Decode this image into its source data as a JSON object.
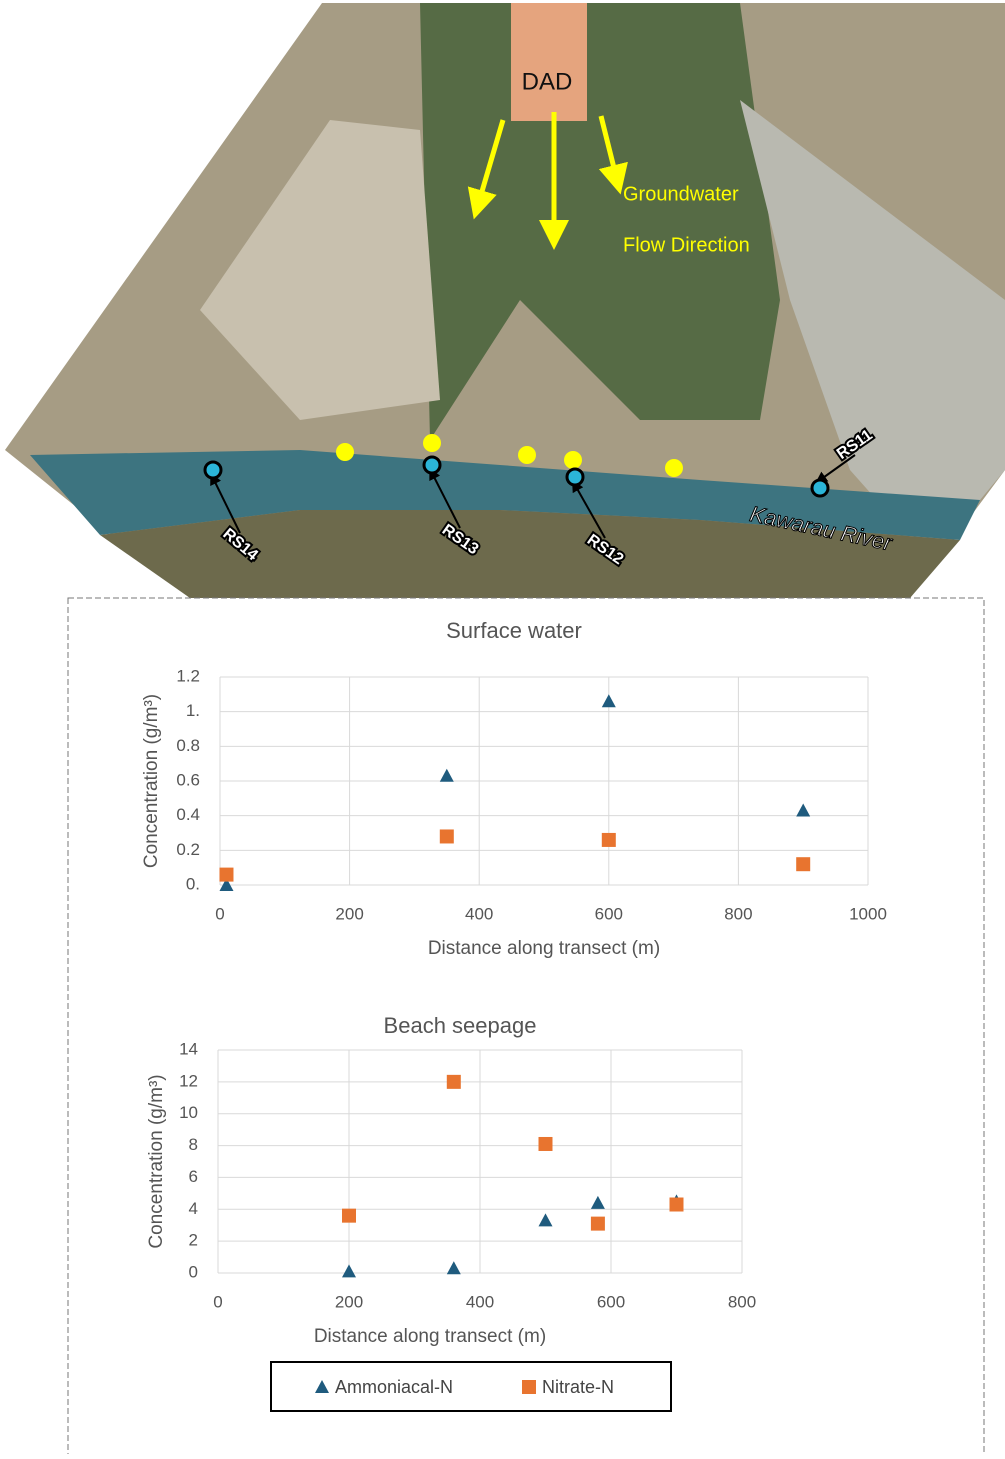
{
  "map": {
    "site": "DAD",
    "flow_label": [
      "Groundwater",
      "Flow Direction"
    ],
    "river": "Kawarau River",
    "sites": [
      "RS14",
      "RS13",
      "RS12",
      "RS11"
    ]
  },
  "chart_data": [
    {
      "type": "scatter",
      "title": "Surface water",
      "x_label": "Distance along transect (m)",
      "y_label": "Concentration (g/m³)",
      "xlim": [
        0,
        1000
      ],
      "xticks": [
        0,
        200,
        400,
        600,
        800,
        1000
      ],
      "ylim": [
        0,
        1.2
      ],
      "yticks": [
        {
          "value": 0,
          "label": "0."
        },
        0.2,
        0.4,
        0.6,
        0.8,
        {
          "value": 1,
          "label": "1."
        },
        1.2
      ],
      "grid": true,
      "series": [
        {
          "color": "#1f5b7e",
          "marker": "triangle",
          "x": [
            10,
            350,
            600,
            900
          ],
          "values": [
            0.0,
            0.63,
            1.06,
            0.43
          ]
        },
        {
          "color": "#e8742f",
          "marker": "square",
          "x": [
            10,
            350,
            600,
            900
          ],
          "values": [
            0.06,
            0.28,
            0.26,
            0.12
          ]
        }
      ]
    },
    {
      "type": "scatter",
      "title": "Beach seepage",
      "x_label": "Distance along transect (m)",
      "y_label": "Concentration (g/m³)",
      "xlim": [
        0,
        800
      ],
      "xticks": [
        0,
        200,
        400,
        600,
        800
      ],
      "ylim": [
        0,
        14
      ],
      "yticks": [
        0,
        2,
        4,
        6,
        8,
        10,
        12,
        14
      ],
      "grid": true,
      "legend": "bottom",
      "series": [
        {
          "name": "Ammoniacal-N",
          "color": "#1f5b7e",
          "marker": "triangle",
          "x": [
            200,
            360,
            500,
            580,
            700
          ],
          "values": [
            0.1,
            0.3,
            3.3,
            4.4,
            4.5
          ]
        },
        {
          "name": "Nitrate-N",
          "color": "#e8742f",
          "marker": "square",
          "x": [
            200,
            360,
            500,
            580,
            700
          ],
          "values": [
            3.6,
            12,
            8.1,
            3.1,
            4.3
          ]
        }
      ]
    }
  ]
}
